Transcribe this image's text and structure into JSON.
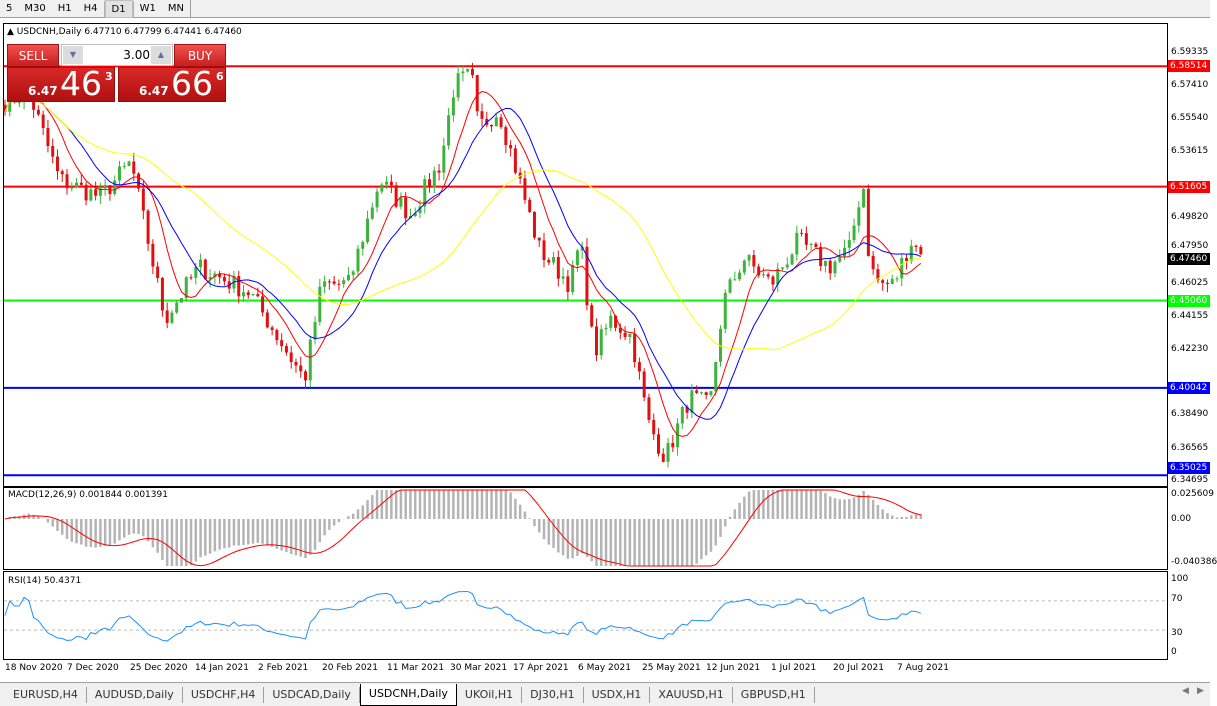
{
  "toolbar": {
    "timeframes": [
      "5",
      "M30",
      "H1",
      "H4",
      "D1",
      "W1",
      "MN"
    ],
    "selected": "D1"
  },
  "chart": {
    "symbol_title": "USDCNH,Daily",
    "ohlc": "6.47710 6.47799 6.47441 6.47460"
  },
  "trade_panel": {
    "sell_label": "SELL",
    "buy_label": "BUY",
    "lot": "3.00",
    "sell_prefix": "6.47",
    "sell_big": "46",
    "sell_pip": "3",
    "buy_prefix": "6.47",
    "buy_big": "66",
    "buy_pip": "6"
  },
  "price_axis": [
    "6.59335",
    "6.57410",
    "6.55540",
    "6.53615",
    "6.49820",
    "6.47950",
    "6.46025",
    "6.44155",
    "6.42230",
    "6.38490",
    "6.36565",
    "6.34695"
  ],
  "levels": [
    {
      "price": "6.58514",
      "color": "#ff0000"
    },
    {
      "price": "6.51605",
      "color": "#ff0000"
    },
    {
      "price": "6.45060",
      "color": "#00ff00"
    },
    {
      "price": "6.40042",
      "color": "#0000ff"
    },
    {
      "price": "6.35025",
      "color": "#0000ff"
    }
  ],
  "current_price": "6.47460",
  "macd": {
    "label": "MACD(12,26,9) 0.001844 0.001391",
    "axis": [
      "0.025609",
      "0.00",
      "-0.040386"
    ]
  },
  "rsi": {
    "label": "RSI(14) 50.4371",
    "axis": [
      "100",
      "70",
      "30",
      "0"
    ]
  },
  "dates": [
    "18 Nov 2020",
    "7 Dec 2020",
    "25 Dec 2020",
    "14 Jan 2021",
    "2 Feb 2021",
    "20 Feb 2021",
    "11 Mar 2021",
    "30 Mar 2021",
    "17 Apr 2021",
    "6 May 2021",
    "25 May 2021",
    "12 Jun 2021",
    "1 Jul 2021",
    "20 Jul 2021",
    "7 Aug 2021"
  ],
  "tabs": [
    "EURUSD,H4",
    "AUDUSD,Daily",
    "USDCHF,H4",
    "USDCAD,Daily",
    "USDCNH,Daily",
    "UKOil,H1",
    "DJ30,H1",
    "USDX,H1",
    "XAUUSD,H1",
    "GBPUSD,H1"
  ],
  "active_tab": "USDCNH,Daily",
  "chart_data": {
    "type": "candlestick",
    "colors": {
      "up": "#3cb43c",
      "down": "#e01010",
      "ma_fast": "#ff0000",
      "ma_mid": "#0000ff",
      "ma_slow": "#ffff00",
      "macd_hist": "#b4b4b4",
      "macd_signal": "#ff0000",
      "rsi": "#1e90ff"
    },
    "close_path": [
      [
        "2020-11-18",
        6.565
      ],
      [
        "2020-11-25",
        6.57
      ],
      [
        "2020-12-04",
        6.52
      ],
      [
        "2020-12-16",
        6.51
      ],
      [
        "2020-12-25",
        6.53
      ],
      [
        "2021-01-04",
        6.44
      ],
      [
        "2021-01-14",
        6.47
      ],
      [
        "2021-01-29",
        6.455
      ],
      [
        "2021-02-14",
        6.405
      ],
      [
        "2021-02-19",
        6.46
      ],
      [
        "2021-02-27",
        6.46
      ],
      [
        "2021-03-08",
        6.52
      ],
      [
        "2021-03-17",
        6.5
      ],
      [
        "2021-03-26",
        6.53
      ],
      [
        "2021-03-30",
        6.575
      ],
      [
        "2021-04-04",
        6.58
      ],
      [
        "2021-04-06",
        6.55
      ],
      [
        "2021-04-12",
        6.56
      ],
      [
        "2021-04-18",
        6.52
      ],
      [
        "2021-04-24",
        6.48
      ],
      [
        "2021-05-03",
        6.46
      ],
      [
        "2021-05-06",
        6.485
      ],
      [
        "2021-05-10",
        6.42
      ],
      [
        "2021-05-15",
        6.44
      ],
      [
        "2021-05-21",
        6.43
      ],
      [
        "2021-05-26",
        6.38
      ],
      [
        "2021-05-31",
        6.36
      ],
      [
        "2021-06-07",
        6.395
      ],
      [
        "2021-06-13",
        6.39
      ],
      [
        "2021-06-17",
        6.45
      ],
      [
        "2021-06-23",
        6.475
      ],
      [
        "2021-07-01",
        6.46
      ],
      [
        "2021-07-09",
        6.485
      ],
      [
        "2021-07-18",
        6.47
      ],
      [
        "2021-07-24",
        6.48
      ],
      [
        "2021-07-28",
        6.52
      ],
      [
        "2021-07-30",
        6.47
      ],
      [
        "2021-08-02",
        6.46
      ],
      [
        "2021-08-06",
        6.46
      ],
      [
        "2021-08-11",
        6.485
      ],
      [
        "2021-08-15",
        6.4746
      ]
    ]
  }
}
